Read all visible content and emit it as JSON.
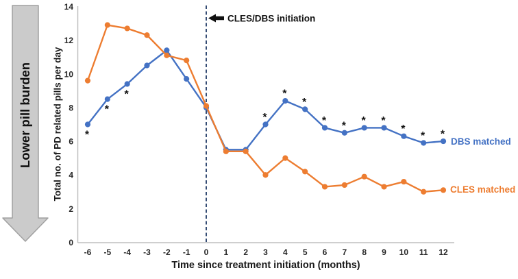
{
  "banner": {
    "label": "Lower pill burden"
  },
  "colors": {
    "dbs": "#4472c4",
    "cles": "#ed7d31",
    "vline": "#1f3864",
    "axis_line": "#bfbfbf",
    "banner_fill": "#cbcbcb",
    "banner_stroke": "#a0a0a0"
  },
  "chart_data": {
    "type": "line",
    "title": "",
    "xlabel": "Time since treatment initiation (months)",
    "ylabel": "Total no. of PD related pills per day",
    "x": [
      -6,
      -5,
      -4,
      -3,
      -2,
      -1,
      0,
      1,
      2,
      3,
      4,
      5,
      6,
      7,
      8,
      9,
      10,
      11,
      12
    ],
    "ylim": [
      0,
      14
    ],
    "yticks": [
      0,
      2,
      4,
      6,
      8,
      10,
      12,
      14
    ],
    "grid": false,
    "legend_position": "line-end-labels",
    "significance_marker": "*",
    "series": [
      {
        "name": "DBS matched",
        "color": "#4472c4",
        "values": [
          7.0,
          8.5,
          9.4,
          10.5,
          11.4,
          9.7,
          8.0,
          5.5,
          5.5,
          7.0,
          8.4,
          7.9,
          6.8,
          6.5,
          6.8,
          6.8,
          6.3,
          5.9,
          6.0
        ],
        "significant_x": [
          -6,
          -5,
          -4,
          3,
          4,
          5,
          6,
          7,
          8,
          9,
          10,
          11,
          12
        ]
      },
      {
        "name": "CLES matched",
        "color": "#ed7d31",
        "values": [
          9.6,
          12.9,
          12.7,
          12.3,
          11.1,
          10.8,
          8.1,
          5.4,
          5.4,
          4.0,
          5.0,
          4.2,
          3.3,
          3.4,
          3.9,
          3.3,
          3.6,
          3.0,
          3.1
        ],
        "significant_x": []
      }
    ],
    "vline": {
      "x": 0,
      "label": "CLES/DBS initiation",
      "style": "dashed",
      "color": "#1f3864"
    }
  }
}
